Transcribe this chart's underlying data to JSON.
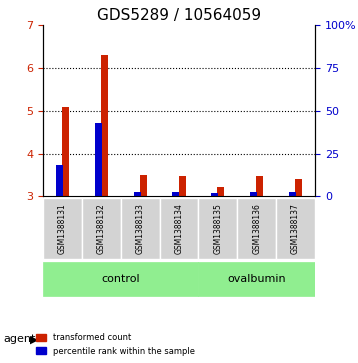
{
  "title": "GDS5289 / 10564059",
  "samples": [
    "GSM1388131",
    "GSM1388132",
    "GSM1388133",
    "GSM1388134",
    "GSM1388135",
    "GSM1388136",
    "GSM1388137"
  ],
  "transformed_counts": [
    5.08,
    6.3,
    3.5,
    3.47,
    3.22,
    3.47,
    3.4
  ],
  "percentile_ranks": [
    3.73,
    4.72,
    3.1,
    3.1,
    3.07,
    3.1,
    3.09
  ],
  "ylim_left": [
    3.0,
    7.0
  ],
  "ylim_right": [
    0,
    100
  ],
  "yticks_left": [
    3,
    4,
    5,
    6,
    7
  ],
  "yticks_right": [
    0,
    25,
    50,
    75,
    100
  ],
  "ytick_labels_right": [
    "0",
    "25",
    "50",
    "75",
    "100%"
  ],
  "groups": [
    {
      "label": "control",
      "samples": [
        0,
        1,
        2,
        3
      ],
      "color": "#90EE90"
    },
    {
      "label": "ovalbumin",
      "samples": [
        4,
        5,
        6
      ],
      "color": "#90EE90"
    }
  ],
  "agent_label": "agent",
  "bar_width": 0.35,
  "red_color": "#CC2200",
  "blue_color": "#0000CC",
  "grid_color": "#000000",
  "bg_color": "#FFFFFF",
  "plot_bg": "#FFFFFF",
  "legend_red": "transformed count",
  "legend_blue": "percentile rank within the sample",
  "left_tick_color": "#CC2200",
  "right_tick_color": "#0000CC",
  "title_fontsize": 11,
  "tick_fontsize": 8,
  "label_fontsize": 8
}
